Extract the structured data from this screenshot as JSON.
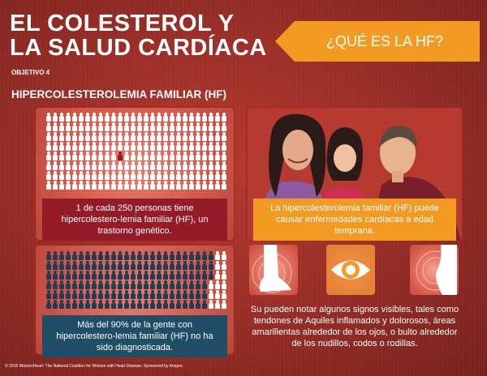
{
  "title": {
    "line1": "EL COLESTEROL Y",
    "line2": "LA SALUD CARDÍACA"
  },
  "objetivo": "OBJETIVO 4",
  "subtitle": "HIPERCOLESTEROLEMIA FAMILIAR (HF)",
  "banner": "¿QUÉ ES LA HF?",
  "panel1": {
    "text": "1 de cada 250 personas tiene hipercolestero-lemia familiar (HF), un trastorno genético."
  },
  "panel2": {
    "text": "Más del 90% de la gente con hipercolestero-lemia familiar (HF) no ha sido diagnosticada."
  },
  "panel3": {
    "text": "La hipercolesterolemia familiar (HF) puede causar enfermedades cardíacas a edad temprana."
  },
  "signs": {
    "text": "Su pueden notar algunos signos visibles, tales como tendones de Aquiles inflamados y dolorosos, áreas amarillentas alrededor de los ojos, o bulto alrededor de los nudillos, codos o rodillas."
  },
  "footer": "© 2016 WomenHeart: The National Coalition for Women with Heart Disease. Sponsored by Amgen.",
  "colors": {
    "accent_orange": "#f29a22",
    "dark_red": "#951b28",
    "dark_teal": "#1f4e66",
    "figure_white": "#ffffff",
    "figure_navy": "#1d3d55"
  }
}
